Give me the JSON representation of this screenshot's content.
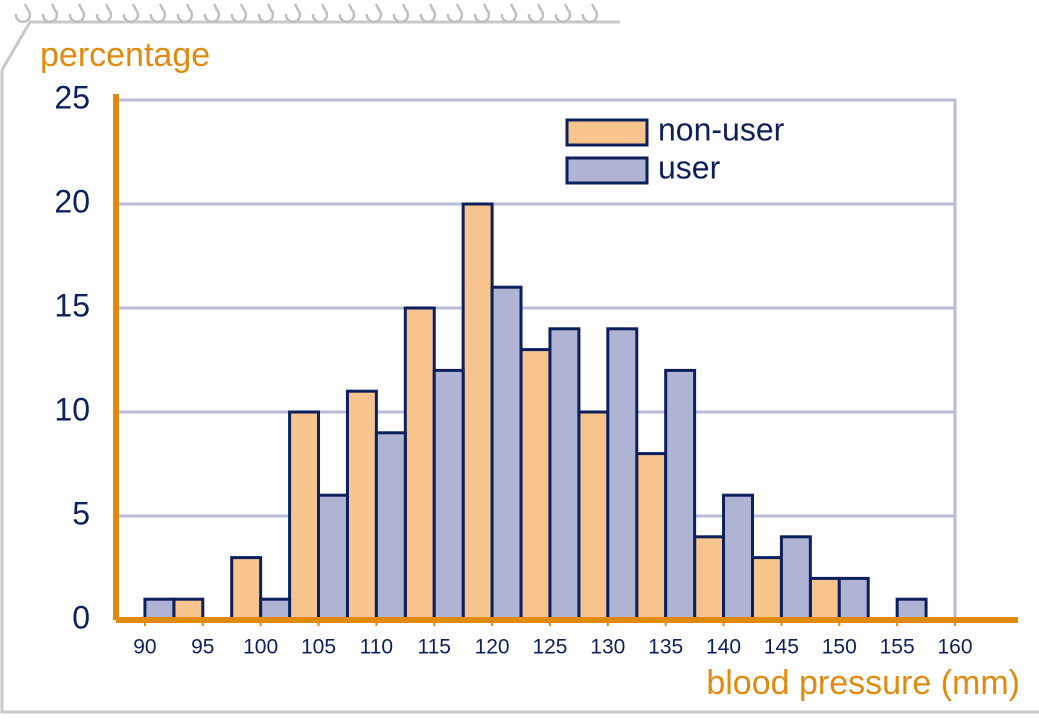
{
  "chart_data": {
    "type": "bar",
    "ylabel": "percentage",
    "xlabel": "blood pressure (mm)",
    "x": [
      90,
      95,
      100,
      105,
      110,
      115,
      120,
      125,
      130,
      135,
      140,
      145,
      150,
      155
    ],
    "series": [
      {
        "name": "non-user",
        "color": "#f7c48e",
        "values": [
          0,
          1,
          3,
          10,
          11,
          15,
          20,
          13,
          10,
          8,
          4,
          3,
          2,
          0
        ]
      },
      {
        "name": "user",
        "color": "#b0b4d4",
        "values": [
          1,
          0,
          1,
          6,
          9,
          12,
          16,
          14,
          14,
          12,
          6,
          4,
          2,
          1
        ]
      }
    ],
    "xlim": [
      87.5,
      160
    ],
    "xticks": [
      90,
      95,
      100,
      105,
      110,
      115,
      120,
      125,
      130,
      135,
      140,
      145,
      150,
      155,
      160
    ],
    "ylim": [
      0,
      25
    ],
    "yticks": [
      0,
      5,
      10,
      15,
      20,
      25
    ],
    "grid": true,
    "legend": "top-right"
  }
}
